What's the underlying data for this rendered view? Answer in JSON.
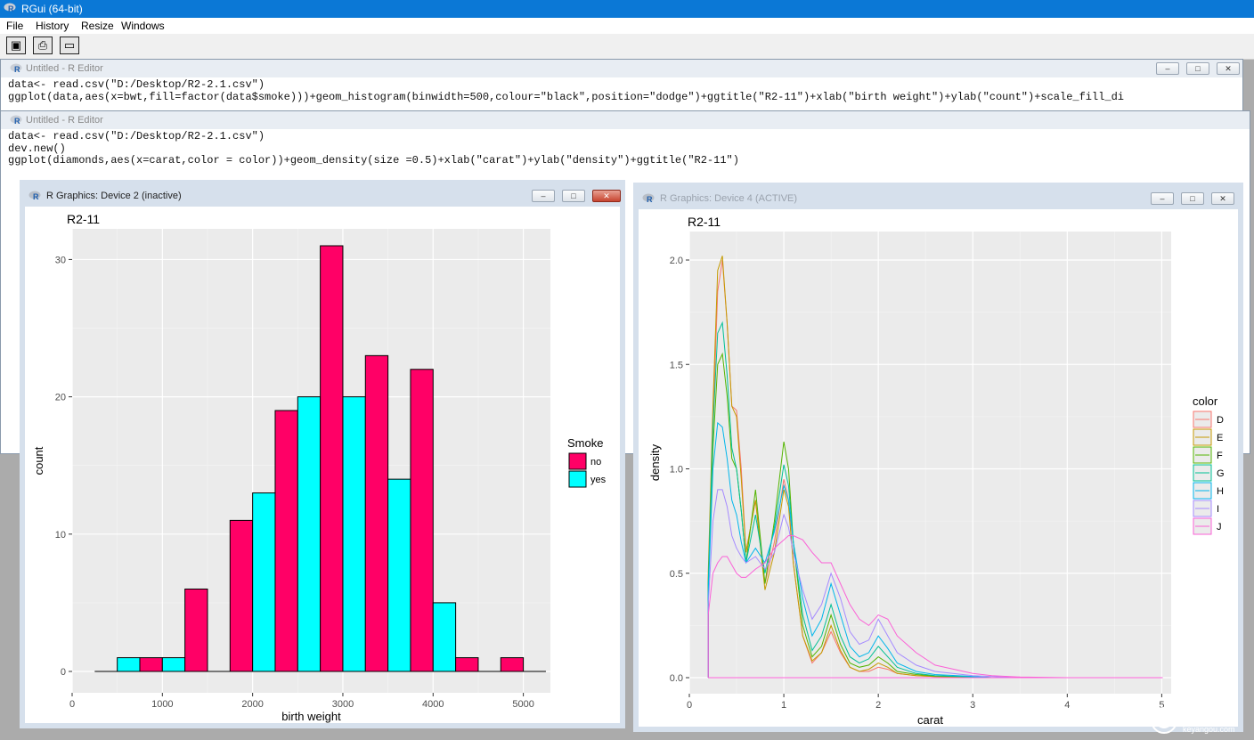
{
  "app": {
    "title": "RGui (64-bit)"
  },
  "menu": [
    "File",
    "History",
    "Resize",
    "Windows"
  ],
  "toolbar": {
    "icons": [
      "camera-icon",
      "print-icon",
      "window-icon"
    ]
  },
  "editor1": {
    "title": "Untitled - R Editor",
    "lines": [
      "data<- read.csv(\"D:/Desktop/R2-2.1.csv\")",
      "ggplot(data,aes(x=bwt,fill=factor(data$smoke)))+geom_histogram(binwidth=500,colour=\"black\",position=\"dodge\")+ggtitle(\"R2-11\")+xlab(\"birth weight\")+ylab(\"count\")+scale_fill_di"
    ]
  },
  "editor2": {
    "title": "Untitled - R Editor",
    "lines": [
      "data<- read.csv(\"D:/Desktop/R2-2.1.csv\")",
      "dev.new()",
      "ggplot(diamonds,aes(x=carat,color = color))+geom_density(size =0.5)+xlab(\"carat\")+ylab(\"density\")+ggtitle(\"R2-11\")"
    ]
  },
  "device2": {
    "title": "R Graphics: Device 2 (inactive)"
  },
  "device4": {
    "title": "R Graphics: Device 4 (ACTIVE)"
  },
  "watermark": "keyangou.com",
  "colors": {
    "no": "#ff0066",
    "yes": "#00ffff",
    "panel": "#ebebeb"
  },
  "chart_data": [
    {
      "type": "bar",
      "title": "R2-11",
      "xlabel": "birth weight",
      "ylabel": "count",
      "xlim": [
        0,
        5300
      ],
      "ylim": [
        0,
        31
      ],
      "xticks": [
        0,
        1000,
        2000,
        3000,
        4000,
        5000
      ],
      "yticks": [
        0,
        10,
        20,
        30
      ],
      "legend_title": "Smoke",
      "legend_position": "right",
      "bin_centers": [
        500,
        1000,
        1500,
        2000,
        2500,
        3000,
        3500,
        4000,
        4500,
        5000
      ],
      "series": [
        {
          "name": "no",
          "color": "#ff0066",
          "values": [
            0,
            1,
            6,
            11,
            19,
            31,
            23,
            22,
            1,
            1
          ]
        },
        {
          "name": "yes",
          "color": "#00ffff",
          "values": [
            1,
            1,
            0,
            13,
            20,
            20,
            14,
            5,
            0,
            0
          ]
        }
      ]
    },
    {
      "type": "line",
      "title": "R2-11",
      "xlabel": "carat",
      "ylabel": "density",
      "xlim": [
        0,
        5.1
      ],
      "ylim": [
        0,
        2.1
      ],
      "xticks": [
        0,
        1,
        2,
        3,
        4,
        5
      ],
      "yticks": [
        0.0,
        0.5,
        1.0,
        1.5,
        2.0
      ],
      "ytick_labels": [
        "0.0",
        "0.5",
        "1.0",
        "1.5",
        "2.0"
      ],
      "legend_title": "color",
      "legend_position": "right",
      "series": [
        {
          "name": "D",
          "color": "#f8766d",
          "x": [
            0.2,
            0.25,
            0.3,
            0.35,
            0.4,
            0.45,
            0.5,
            0.55,
            0.6,
            0.7,
            0.8,
            0.9,
            1.0,
            1.05,
            1.1,
            1.2,
            1.3,
            1.4,
            1.5,
            1.6,
            1.7,
            1.8,
            1.9,
            2.0,
            2.1,
            2.2,
            2.4,
            2.6,
            3.0,
            3.2,
            3.5,
            4.0,
            5.01
          ],
          "y": [
            0.45,
            1.2,
            1.85,
            2.0,
            1.7,
            1.3,
            1.28,
            1.0,
            0.6,
            0.85,
            0.45,
            0.65,
            0.95,
            0.85,
            0.55,
            0.2,
            0.07,
            0.12,
            0.22,
            0.12,
            0.05,
            0.03,
            0.03,
            0.05,
            0.04,
            0.02,
            0.01,
            0.005,
            0.002,
            0,
            0,
            0,
            0
          ]
        },
        {
          "name": "E",
          "color": "#c49a00",
          "x": [
            0.2,
            0.25,
            0.3,
            0.35,
            0.4,
            0.45,
            0.5,
            0.55,
            0.6,
            0.7,
            0.8,
            0.9,
            1.0,
            1.05,
            1.1,
            1.2,
            1.3,
            1.4,
            1.5,
            1.6,
            1.7,
            1.8,
            1.9,
            2.0,
            2.1,
            2.2,
            2.4,
            2.6,
            3.0,
            3.2,
            3.5,
            4.0,
            5.01
          ],
          "y": [
            0.5,
            1.3,
            1.95,
            2.02,
            1.7,
            1.3,
            1.25,
            0.95,
            0.6,
            0.85,
            0.42,
            0.6,
            0.9,
            0.82,
            0.55,
            0.2,
            0.08,
            0.12,
            0.25,
            0.13,
            0.05,
            0.03,
            0.04,
            0.07,
            0.05,
            0.02,
            0.01,
            0.005,
            0.002,
            0,
            0,
            0,
            0
          ]
        },
        {
          "name": "F",
          "color": "#53b400",
          "x": [
            0.2,
            0.25,
            0.3,
            0.35,
            0.4,
            0.45,
            0.5,
            0.55,
            0.6,
            0.7,
            0.8,
            0.9,
            1.0,
            1.05,
            1.1,
            1.2,
            1.3,
            1.4,
            1.5,
            1.6,
            1.7,
            1.8,
            1.9,
            2.0,
            2.1,
            2.2,
            2.4,
            2.6,
            3.0,
            3.2,
            3.5,
            4.0,
            5.01
          ],
          "y": [
            0.45,
            1.1,
            1.5,
            1.55,
            1.35,
            1.05,
            1.0,
            0.8,
            0.55,
            0.9,
            0.45,
            0.75,
            1.13,
            1.0,
            0.65,
            0.25,
            0.1,
            0.15,
            0.3,
            0.16,
            0.07,
            0.05,
            0.06,
            0.1,
            0.07,
            0.03,
            0.015,
            0.008,
            0.003,
            0,
            0,
            0,
            0
          ]
        },
        {
          "name": "G",
          "color": "#00c094",
          "x": [
            0.2,
            0.25,
            0.3,
            0.35,
            0.4,
            0.45,
            0.5,
            0.55,
            0.6,
            0.7,
            0.8,
            0.9,
            1.0,
            1.05,
            1.1,
            1.2,
            1.3,
            1.4,
            1.5,
            1.6,
            1.7,
            1.8,
            1.9,
            2.0,
            2.1,
            2.2,
            2.4,
            2.6,
            3.0,
            3.2,
            3.5,
            4.0,
            5.01
          ],
          "y": [
            0.45,
            1.2,
            1.65,
            1.7,
            1.45,
            1.1,
            1.0,
            0.8,
            0.55,
            0.78,
            0.5,
            0.72,
            1.02,
            0.92,
            0.65,
            0.3,
            0.13,
            0.2,
            0.35,
            0.2,
            0.1,
            0.07,
            0.09,
            0.15,
            0.1,
            0.05,
            0.02,
            0.01,
            0.004,
            0,
            0,
            0,
            0
          ]
        },
        {
          "name": "H",
          "color": "#00b6eb",
          "x": [
            0.2,
            0.25,
            0.3,
            0.35,
            0.4,
            0.45,
            0.5,
            0.55,
            0.6,
            0.7,
            0.8,
            0.9,
            1.0,
            1.05,
            1.1,
            1.2,
            1.3,
            1.4,
            1.5,
            1.6,
            1.7,
            1.8,
            1.9,
            2.0,
            2.1,
            2.2,
            2.4,
            2.6,
            3.0,
            3.2,
            3.5,
            4.0,
            5.01
          ],
          "y": [
            0.4,
            1.0,
            1.22,
            1.2,
            1.05,
            0.85,
            0.78,
            0.65,
            0.55,
            0.62,
            0.55,
            0.7,
            0.92,
            0.85,
            0.65,
            0.38,
            0.2,
            0.28,
            0.45,
            0.3,
            0.15,
            0.1,
            0.12,
            0.2,
            0.14,
            0.07,
            0.03,
            0.015,
            0.006,
            0,
            0,
            0,
            0
          ]
        },
        {
          "name": "I",
          "color": "#a58aff",
          "x": [
            0.2,
            0.25,
            0.3,
            0.35,
            0.4,
            0.45,
            0.5,
            0.55,
            0.6,
            0.7,
            0.8,
            0.9,
            1.0,
            1.05,
            1.1,
            1.2,
            1.3,
            1.4,
            1.5,
            1.6,
            1.7,
            1.8,
            1.9,
            2.0,
            2.1,
            2.2,
            2.4,
            2.6,
            3.0,
            3.2,
            3.5,
            4.0,
            5.01
          ],
          "y": [
            0.35,
            0.75,
            0.9,
            0.9,
            0.82,
            0.68,
            0.62,
            0.58,
            0.55,
            0.58,
            0.52,
            0.6,
            0.78,
            0.72,
            0.6,
            0.42,
            0.28,
            0.35,
            0.5,
            0.38,
            0.22,
            0.16,
            0.18,
            0.28,
            0.2,
            0.12,
            0.06,
            0.03,
            0.01,
            0.005,
            0,
            0,
            0
          ]
        },
        {
          "name": "J",
          "color": "#fb61d7",
          "x": [
            0.2,
            0.25,
            0.3,
            0.35,
            0.4,
            0.45,
            0.5,
            0.55,
            0.6,
            0.7,
            0.8,
            0.9,
            1.0,
            1.05,
            1.1,
            1.2,
            1.3,
            1.4,
            1.5,
            1.6,
            1.7,
            1.8,
            1.9,
            2.0,
            2.1,
            2.2,
            2.4,
            2.6,
            3.0,
            3.2,
            3.5,
            4.0,
            5.01
          ],
          "y": [
            0.3,
            0.5,
            0.55,
            0.58,
            0.58,
            0.54,
            0.5,
            0.48,
            0.48,
            0.52,
            0.55,
            0.62,
            0.66,
            0.68,
            0.68,
            0.66,
            0.6,
            0.55,
            0.55,
            0.45,
            0.35,
            0.28,
            0.25,
            0.3,
            0.28,
            0.2,
            0.12,
            0.06,
            0.02,
            0.01,
            0.003,
            0,
            0
          ]
        }
      ]
    }
  ]
}
